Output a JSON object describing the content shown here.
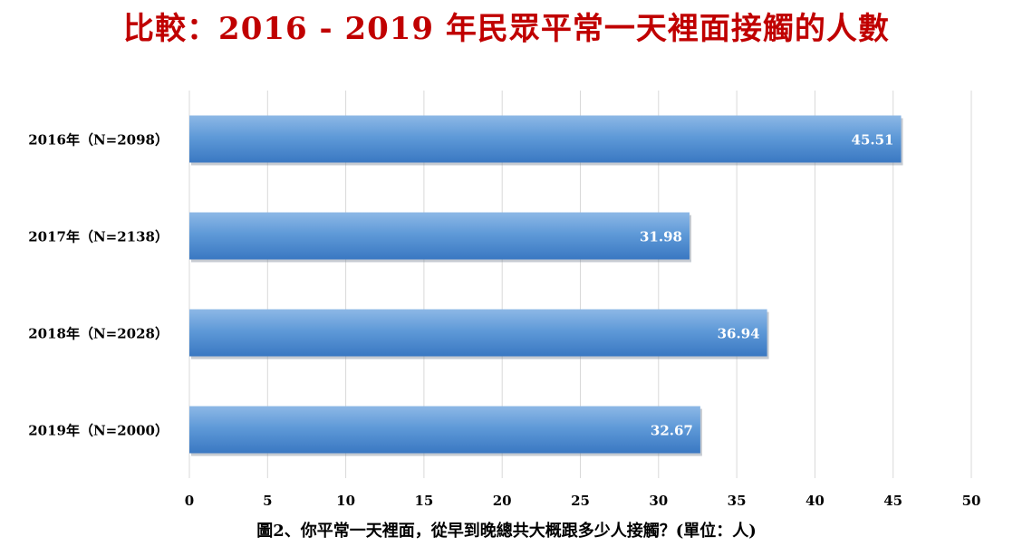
{
  "chart_data": {
    "type": "bar",
    "orientation": "horizontal",
    "title": "比較：2016 - 2019 年民眾平常一天裡面接觸的人數",
    "caption": "圖2、你平常一天裡面，從早到晚總共大概跟多少人接觸？(單位：人)",
    "categories": [
      "2016年（N=2098）",
      "2017年（N=2138）",
      "2018年（N=2028）",
      "2019年（N=2000）"
    ],
    "values": [
      45.51,
      31.98,
      36.94,
      32.67
    ],
    "data_labels": [
      "45.51",
      "31.98",
      "36.94",
      "32.67"
    ],
    "xlim": [
      0,
      50
    ],
    "x_ticks": [
      "0",
      "5",
      "10",
      "15",
      "20",
      "25",
      "30",
      "35",
      "40",
      "45",
      "50"
    ],
    "grid": true,
    "legend": "none",
    "colors": {
      "bar_top": "#8db8e6",
      "bar_bottom": "#3a78c2",
      "title": "#c00000",
      "grid": "#d9d9d9"
    }
  }
}
